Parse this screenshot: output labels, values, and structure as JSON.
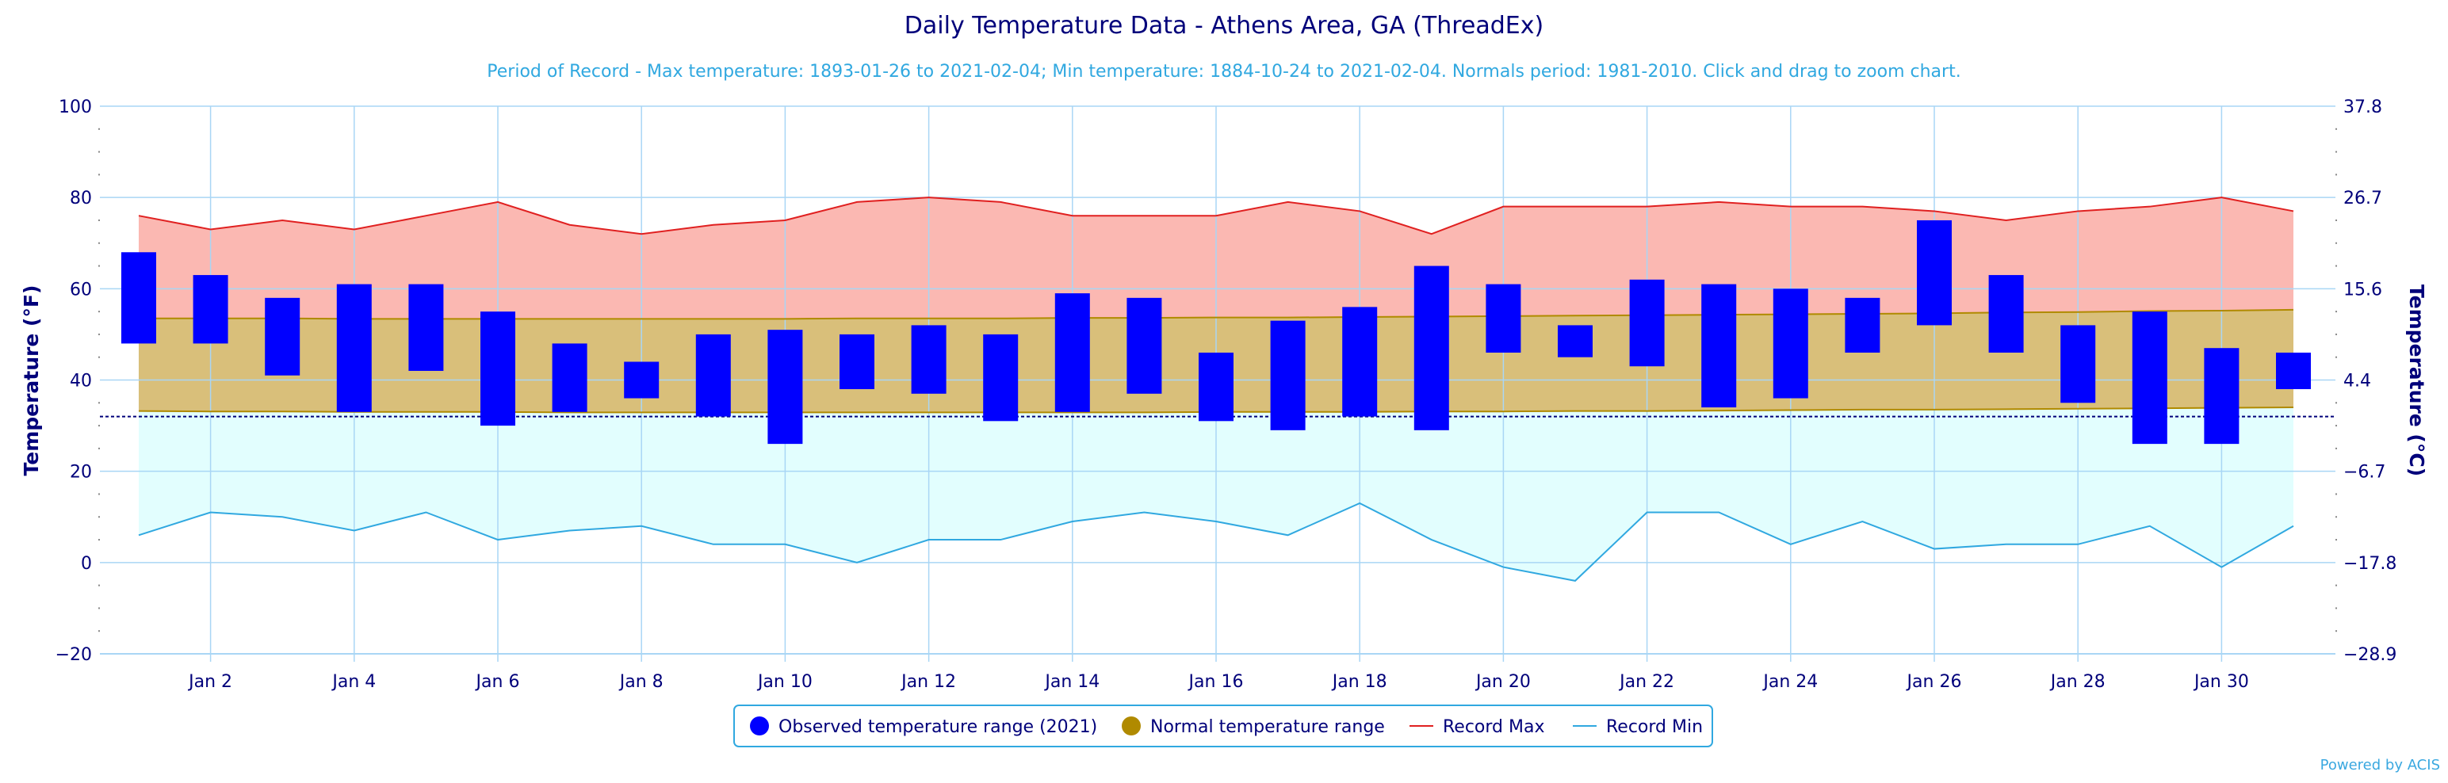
{
  "colors": {
    "title": "#00007a",
    "subtitle": "#30a8e0",
    "observed": "#0000ff",
    "normal_fill": "#d9bf7a",
    "normal_line": "#b08a00",
    "record_max_line": "#e02020",
    "record_max_fill": "#fbb8b2",
    "record_min_line": "#30a8e0",
    "record_min_fill": "#e2fefe",
    "grid": "#a9d6f5",
    "freezing_line": "#00007a"
  },
  "chart_data": {
    "type": "bar",
    "title": "Daily Temperature Data - Athens Area, GA (ThreadEx)",
    "subtitle": "Period of Record - Max temperature: 1893-01-26 to 2021-02-04; Min temperature: 1884-10-24 to 2021-02-04. Normals period: 1981-2010. Click and drag to zoom chart.",
    "ylabel": "Temperature (°F)",
    "ylabel_right": "Temperature (°C)",
    "ylim": [
      -20,
      100
    ],
    "y_ticks": [
      "100",
      "80",
      "60",
      "40",
      "20",
      "0",
      "−20"
    ],
    "right_ticks": [
      "37.8",
      "26.7",
      "15.6",
      "4.4",
      "−6.7",
      "−17.8",
      "−28.9"
    ],
    "x_tick_labels": [
      "Jan 2",
      "Jan 4",
      "Jan 6",
      "Jan 8",
      "Jan 10",
      "Jan 12",
      "Jan 14",
      "Jan 16",
      "Jan 18",
      "Jan 20",
      "Jan 22",
      "Jan 24",
      "Jan 26",
      "Jan 28",
      "Jan 30"
    ],
    "days": [
      1,
      2,
      3,
      4,
      5,
      6,
      7,
      8,
      9,
      10,
      11,
      12,
      13,
      14,
      15,
      16,
      17,
      18,
      19,
      20,
      21,
      22,
      23,
      24,
      25,
      26,
      27,
      28,
      29,
      30,
      31
    ],
    "observed_high": [
      68,
      63,
      58,
      61,
      61,
      55,
      48,
      44,
      50,
      51,
      50,
      52,
      50,
      59,
      58,
      46,
      53,
      56,
      65,
      61,
      52,
      62,
      61,
      60,
      58,
      75,
      63,
      52,
      55,
      47,
      46
    ],
    "observed_low": [
      48,
      48,
      41,
      33,
      42,
      30,
      33,
      36,
      32,
      26,
      38,
      37,
      31,
      33,
      37,
      31,
      29,
      32,
      29,
      46,
      45,
      43,
      34,
      36,
      46,
      52,
      46,
      35,
      26,
      26,
      38
    ],
    "normal_high": [
      53.5,
      53.5,
      53.5,
      53.4,
      53.4,
      53.4,
      53.4,
      53.4,
      53.4,
      53.4,
      53.5,
      53.5,
      53.5,
      53.6,
      53.6,
      53.7,
      53.7,
      53.8,
      53.9,
      54.0,
      54.1,
      54.2,
      54.3,
      54.4,
      54.5,
      54.6,
      54.8,
      54.9,
      55.1,
      55.2,
      55.4
    ],
    "normal_low": [
      33.2,
      33.1,
      33.1,
      33.0,
      33.0,
      33.0,
      32.9,
      32.9,
      32.9,
      32.9,
      32.9,
      32.9,
      32.9,
      32.9,
      32.9,
      33.0,
      33.0,
      33.0,
      33.1,
      33.1,
      33.2,
      33.2,
      33.3,
      33.4,
      33.5,
      33.5,
      33.6,
      33.7,
      33.8,
      33.9,
      34.0
    ],
    "record_max": [
      76,
      73,
      75,
      73,
      76,
      79,
      74,
      72,
      74,
      75,
      79,
      80,
      79,
      76,
      76,
      76,
      79,
      77,
      72,
      78,
      78,
      78,
      79,
      78,
      78,
      77,
      75,
      77,
      78,
      80,
      77
    ],
    "record_min": [
      6,
      11,
      10,
      7,
      11,
      5,
      7,
      8,
      4,
      4,
      0,
      5,
      5,
      9,
      11,
      9,
      6,
      13,
      5,
      -1,
      -4,
      11,
      11,
      4,
      9,
      3,
      4,
      4,
      8,
      -1,
      8
    ],
    "freezing_line": 32,
    "legend": {
      "observed": "Observed temperature range (2021)",
      "normal": "Normal temperature range",
      "record_max": "Record Max",
      "record_min": "Record Min"
    },
    "legend_position": "bottom-center",
    "grid": true
  },
  "credit": "Powered by ACIS"
}
